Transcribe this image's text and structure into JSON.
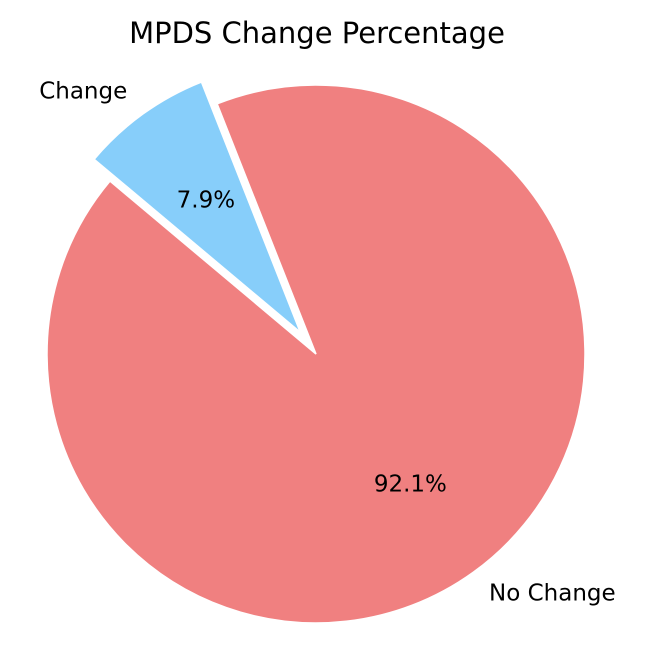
{
  "chart_data": {
    "type": "pie",
    "title": "MPDS Change Percentage",
    "slices": [
      {
        "label": "No Change",
        "value": 92.1,
        "pct_label": "92.1%",
        "color": "#F08080",
        "explode": 0
      },
      {
        "label": "Change",
        "value": 7.9,
        "pct_label": "7.9%",
        "color": "#87CEFA",
        "explode": 0.1
      }
    ],
    "start_angle_deg": 140,
    "legend": "none"
  }
}
